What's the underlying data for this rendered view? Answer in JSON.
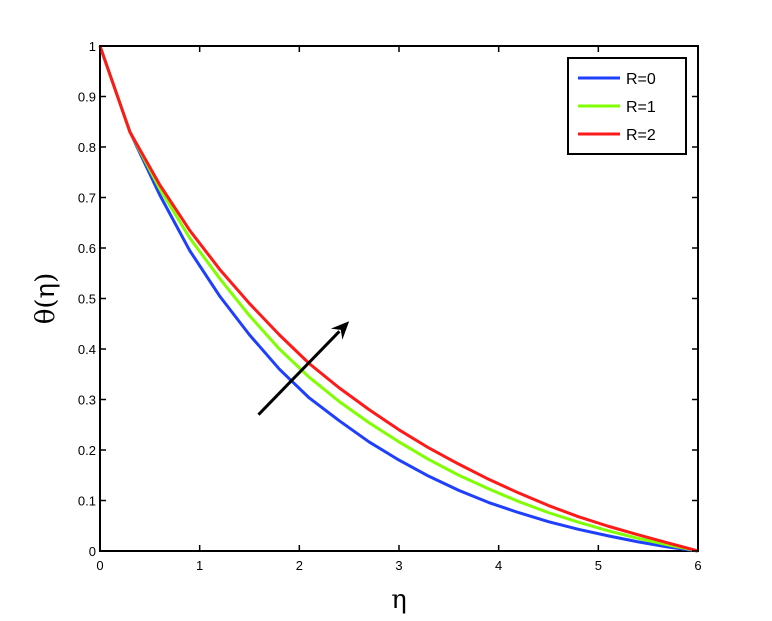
{
  "chart_data": {
    "type": "line",
    "xlabel": "η",
    "ylabel": "θ(η)",
    "xlim": [
      0,
      6
    ],
    "ylim": [
      0,
      1
    ],
    "xticks": [
      "0",
      "1",
      "2",
      "3",
      "4",
      "5",
      "6"
    ],
    "yticks": [
      "0",
      "0.1",
      "0.2",
      "0.3",
      "0.4",
      "0.5",
      "0.6",
      "0.7",
      "0.8",
      "0.9",
      "1"
    ],
    "grid": false,
    "legend_position": "top-right",
    "x": [
      0,
      0.3,
      0.6,
      0.9,
      1.2,
      1.5,
      1.8,
      2.1,
      2.4,
      2.7,
      3.0,
      3.3,
      3.6,
      3.9,
      4.2,
      4.5,
      4.8,
      5.1,
      5.4,
      5.7,
      6.0
    ],
    "series": [
      {
        "name": "R=0",
        "color": "#1f3fff",
        "values": [
          1.0,
          0.83,
          0.705,
          0.595,
          0.505,
          0.428,
          0.36,
          0.303,
          0.258,
          0.216,
          0.18,
          0.148,
          0.12,
          0.096,
          0.076,
          0.058,
          0.043,
          0.03,
          0.018,
          0.008,
          0.0
        ]
      },
      {
        "name": "R=1",
        "color": "#7fff00",
        "values": [
          1.0,
          0.83,
          0.717,
          0.62,
          0.54,
          0.466,
          0.4,
          0.344,
          0.296,
          0.254,
          0.216,
          0.181,
          0.15,
          0.123,
          0.098,
          0.076,
          0.057,
          0.04,
          0.025,
          0.012,
          0.0
        ]
      },
      {
        "name": "R=2",
        "color": "#ff1a1a",
        "values": [
          1.0,
          0.83,
          0.725,
          0.635,
          0.558,
          0.49,
          0.428,
          0.371,
          0.323,
          0.28,
          0.24,
          0.204,
          0.172,
          0.142,
          0.115,
          0.09,
          0.068,
          0.049,
          0.032,
          0.016,
          0.0
        ]
      }
    ],
    "annotation": {
      "type": "arrow",
      "from": [
        1.59,
        0.27
      ],
      "to": [
        2.5,
        0.455
      ],
      "color": "#000000"
    }
  }
}
